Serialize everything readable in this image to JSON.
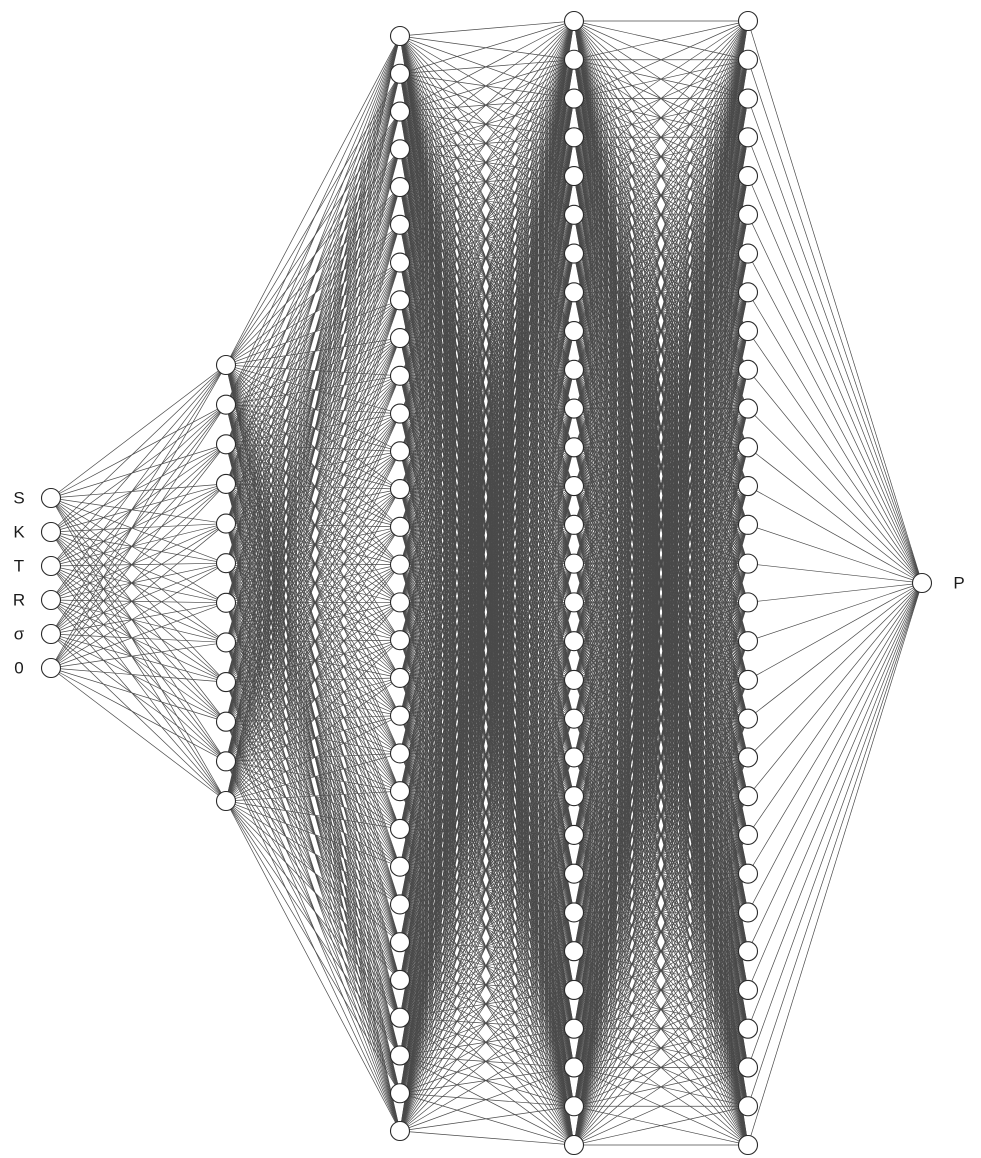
{
  "diagram": {
    "type": "neural-network",
    "layers": [
      {
        "name": "input-layer",
        "neurons": 6
      },
      {
        "name": "hidden-layer-1",
        "neurons": 12
      },
      {
        "name": "hidden-layer-2",
        "neurons": 30
      },
      {
        "name": "hidden-layer-3",
        "neurons": 30
      },
      {
        "name": "hidden-layer-4",
        "neurons": 30
      },
      {
        "name": "output-layer",
        "neurons": 1
      }
    ],
    "input_labels": [
      "S",
      "K",
      "T",
      "R",
      "σ",
      "0"
    ],
    "output_labels": [
      "P"
    ],
    "colors": {
      "edge": "#4a4a4a",
      "node_fill": "#ffffff",
      "node_stroke": "#2a2a2a",
      "label": "#1a1a1a"
    }
  }
}
